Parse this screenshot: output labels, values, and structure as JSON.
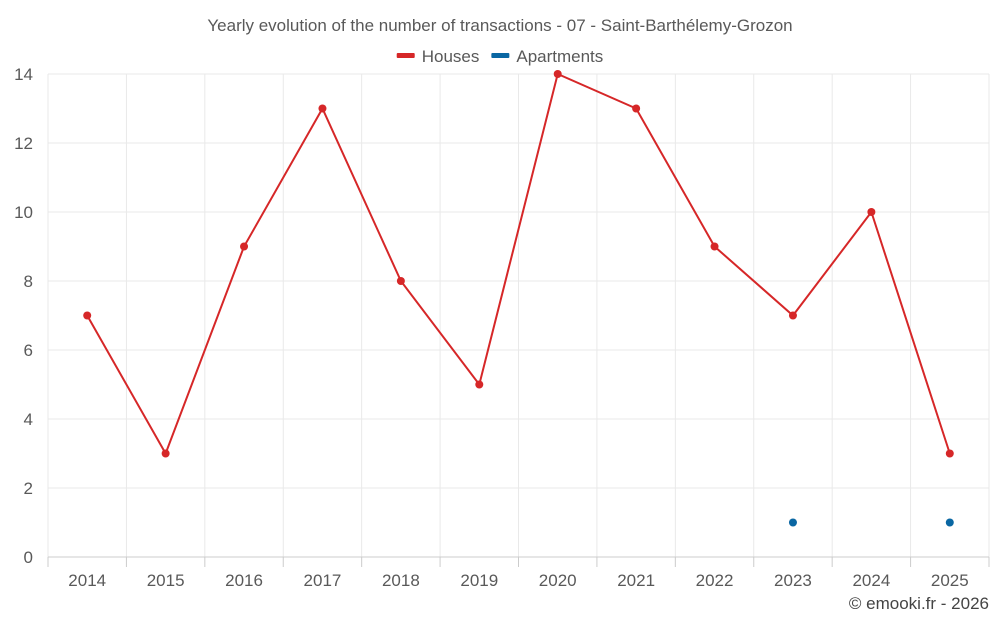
{
  "chart_data": {
    "type": "line",
    "title": "Yearly evolution of the number of transactions - 07 - Saint-Barthélemy-Grozon",
    "xlabel": "",
    "ylabel": "",
    "categories": [
      "2014",
      "2015",
      "2016",
      "2017",
      "2018",
      "2019",
      "2020",
      "2021",
      "2022",
      "2023",
      "2024",
      "2025"
    ],
    "ylim": [
      0,
      14
    ],
    "yticks": [
      "0",
      "2",
      "4",
      "6",
      "8",
      "10",
      "12",
      "14"
    ],
    "grid": true,
    "legend_position": "top-center",
    "series": [
      {
        "name": "Houses",
        "color": "#d62728",
        "values": [
          7,
          3,
          9,
          13,
          8,
          5,
          14,
          13,
          9,
          7,
          10,
          3
        ]
      },
      {
        "name": "Apartments",
        "color": "#0a67a3",
        "values": [
          null,
          null,
          null,
          null,
          null,
          null,
          null,
          null,
          null,
          1,
          null,
          1
        ]
      }
    ]
  },
  "credit": "© emooki.fr - 2026"
}
